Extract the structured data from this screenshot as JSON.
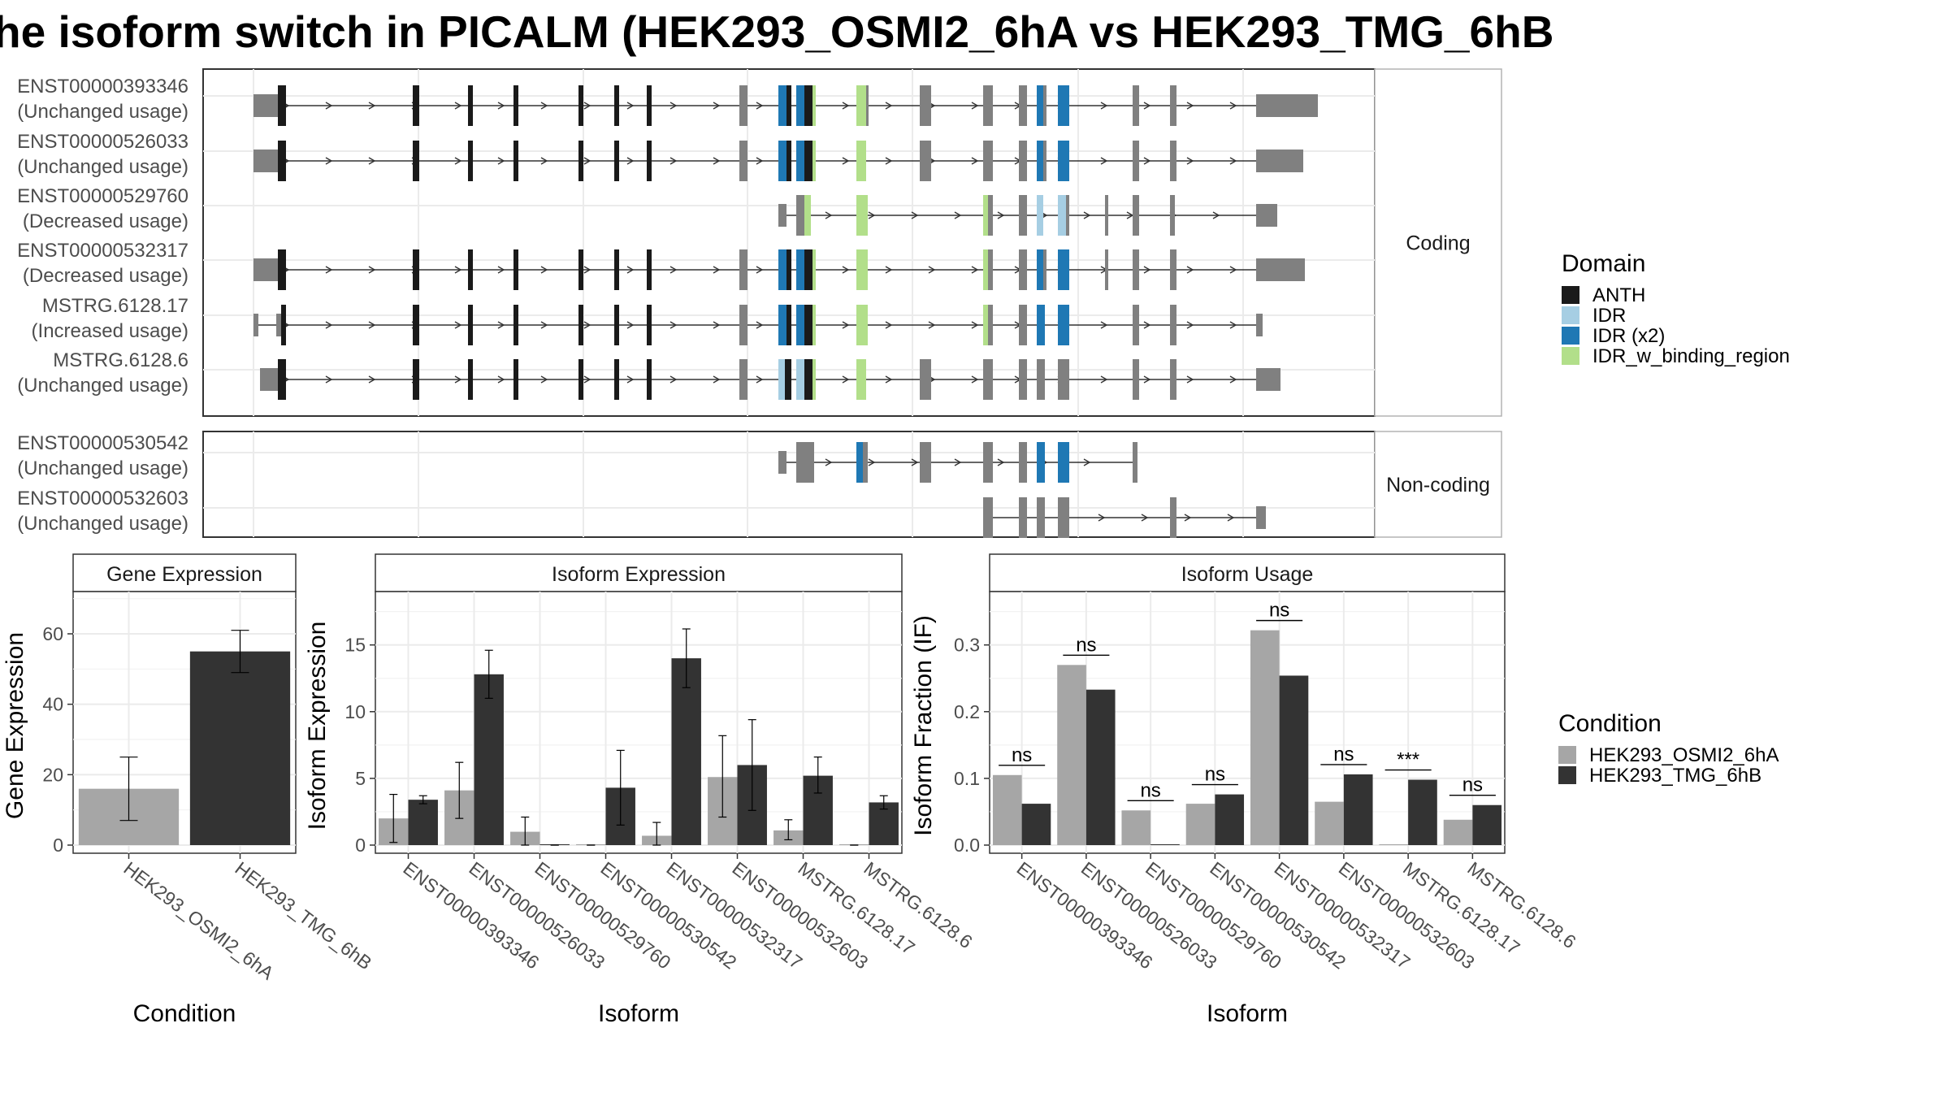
{
  "title": "he isoform switch in PICALM (HEK293_OSMI2_6hA vs HEK293_TMG_6hB",
  "colors": {
    "anth": "#1a1a1a",
    "idr": "#a6cee3",
    "idr_x2": "#1f78b4",
    "idr_binding": "#b2df8a",
    "exon": "#808080",
    "cond_a": "#a6a6a6",
    "cond_b": "#333333"
  },
  "structure": {
    "facets": [
      "Coding",
      "Non-coding"
    ],
    "domain_legend": {
      "title": "Domain",
      "entries": [
        {
          "label": "ANTH",
          "color": "#1a1a1a"
        },
        {
          "label": "IDR",
          "color": "#a6cee3"
        },
        {
          "label": "IDR (x2)",
          "color": "#1f78b4"
        },
        {
          "label": "IDR_w_binding_region",
          "color": "#b2df8a"
        }
      ]
    },
    "transcripts": [
      {
        "id": "ENST00000393346",
        "usage": "(Unchanged usage)",
        "facet": 0
      },
      {
        "id": "ENST00000526033",
        "usage": "(Unchanged usage)",
        "facet": 0
      },
      {
        "id": "ENST00000529760",
        "usage": "(Decreased usage)",
        "facet": 0
      },
      {
        "id": "ENST00000532317",
        "usage": "(Decreased usage)",
        "facet": 0
      },
      {
        "id": "MSTRG.6128.17",
        "usage": "(Increased usage)",
        "facet": 0
      },
      {
        "id": "MSTRG.6128.6",
        "usage": "(Unchanged usage)",
        "facet": 0
      },
      {
        "id": "ENST00000530542",
        "usage": "(Unchanged usage)",
        "facet": 1
      },
      {
        "id": "ENST00000532603",
        "usage": "(Unchanged usage)",
        "facet": 1
      }
    ]
  },
  "chart_data": [
    {
      "type": "bar",
      "title": "Gene Expression",
      "xlabel": "Condition",
      "ylabel": "Gene Expression",
      "ylim": [
        0,
        72
      ],
      "yticks": [
        0,
        20,
        40,
        60
      ],
      "categories": [
        "HEK293_OSMI2_6hA",
        "HEK293_TMG_6hB"
      ],
      "values": [
        16,
        55
      ],
      "errors": [
        [
          7,
          25
        ],
        [
          49,
          61
        ]
      ]
    },
    {
      "type": "bar",
      "title": "Isoform Expression",
      "xlabel": "Isoform",
      "ylabel": "Isoform Expression",
      "ylim": [
        0,
        19
      ],
      "yticks": [
        0,
        5,
        10,
        15
      ],
      "categories": [
        "ENST00000393346",
        "ENST00000526033",
        "ENST00000529760",
        "ENST00000530542",
        "ENST00000532317",
        "ENST00000532603",
        "MSTRG.6128.17",
        "MSTRG.6128.6"
      ],
      "series": [
        {
          "name": "HEK293_OSMI2_6hA",
          "values": [
            2.0,
            4.1,
            1.0,
            0.0,
            0.7,
            5.1,
            1.1,
            0.0
          ],
          "errors": [
            [
              0.2,
              3.8
            ],
            [
              2.0,
              6.2
            ],
            [
              0.0,
              2.1
            ],
            [
              0.0,
              0.0
            ],
            [
              0.0,
              1.7
            ],
            [
              2.1,
              8.2
            ],
            [
              0.4,
              1.9
            ],
            [
              0.0,
              0.0
            ]
          ]
        },
        {
          "name": "HEK293_TMG_6hB",
          "values": [
            3.4,
            12.8,
            0.0,
            4.3,
            14.0,
            6.0,
            5.2,
            3.2
          ],
          "errors": [
            [
              3.1,
              3.7
            ],
            [
              11.0,
              14.6
            ],
            [
              0.0,
              0.0
            ],
            [
              1.5,
              7.1
            ],
            [
              11.8,
              16.2
            ],
            [
              2.6,
              9.4
            ],
            [
              3.9,
              6.6
            ],
            [
              2.7,
              3.7
            ]
          ]
        }
      ],
      "series_note": "bar pairs correspond to categories in order"
    },
    {
      "type": "bar",
      "title": "Isoform Usage",
      "xlabel": "Isoform",
      "ylabel": "Isoform Fraction (IF)",
      "ylim": [
        0,
        0.38
      ],
      "yticks": [
        0.0,
        0.1,
        0.2,
        0.3
      ],
      "categories": [
        "ENST00000393346",
        "ENST00000526033",
        "ENST00000529760",
        "ENST00000530542",
        "ENST00000532317",
        "ENST00000532603",
        "MSTRG.6128.17",
        "MSTRG.6128.6"
      ],
      "series": [
        {
          "name": "HEK293_OSMI2_6hA",
          "values": [
            0.105,
            0.27,
            0.052,
            0.062,
            0.322,
            0.065,
            0.0,
            0.038
          ]
        },
        {
          "name": "HEK293_TMG_6hB",
          "values": [
            0.062,
            0.233,
            0.0,
            0.076,
            0.254,
            0.106,
            0.098,
            0.06
          ]
        }
      ],
      "significance": [
        "ns",
        "ns",
        "ns",
        "ns",
        "ns",
        "ns",
        "***",
        "ns"
      ]
    }
  ],
  "condition_legend": {
    "title": "Condition",
    "entries": [
      "HEK293_OSMI2_6hA",
      "HEK293_TMG_6hB"
    ]
  }
}
